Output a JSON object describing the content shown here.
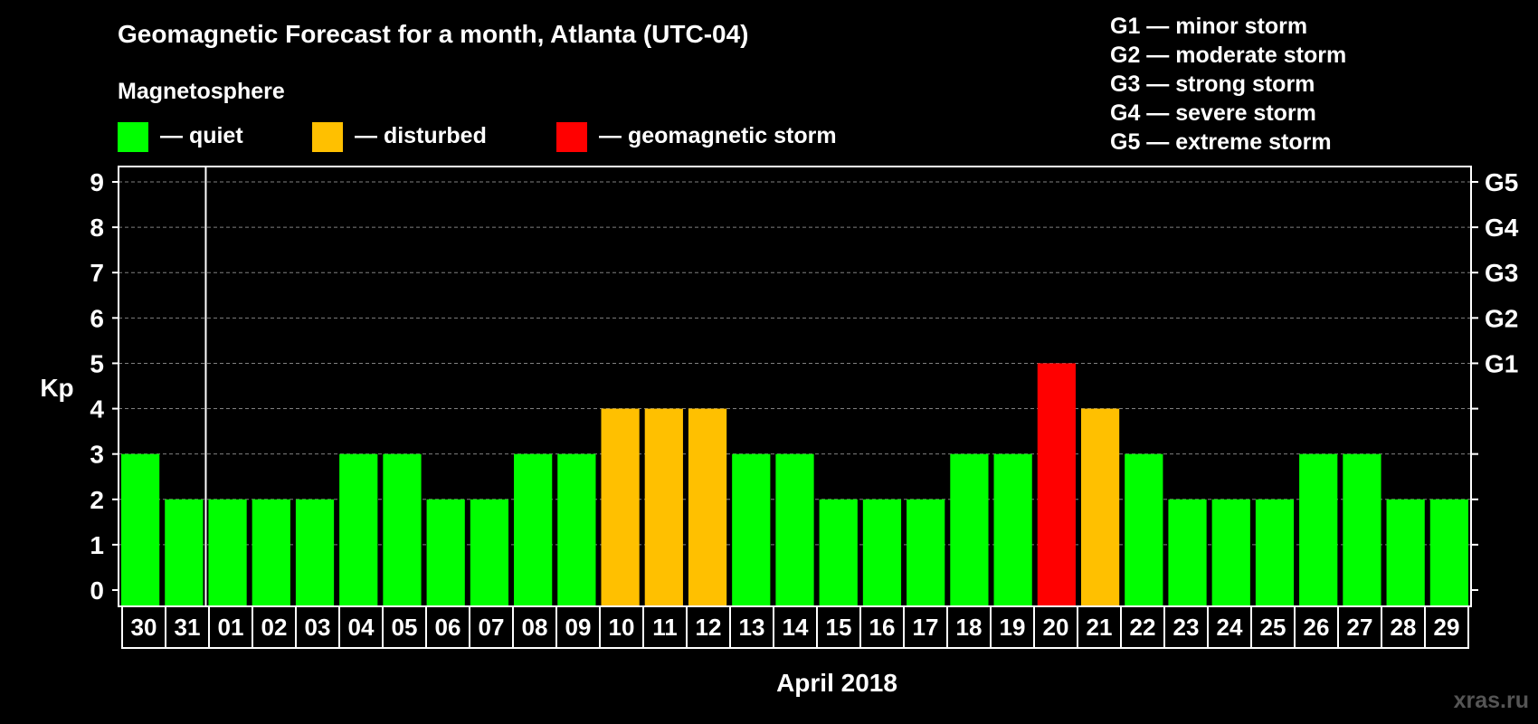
{
  "chart_data": {
    "type": "bar",
    "title": "Geomagnetic Forecast for a month, Atlanta (UTC-04)",
    "xlabel": "April 2018",
    "ylabel": "Kp",
    "ylim": [
      0,
      9
    ],
    "yticks": [
      "0",
      "1",
      "2",
      "3",
      "4",
      "5",
      "6",
      "7",
      "8",
      "9"
    ],
    "right_axis_labels": [
      {
        "kp": 5,
        "label": "G1"
      },
      {
        "kp": 6,
        "label": "G2"
      },
      {
        "kp": 7,
        "label": "G3"
      },
      {
        "kp": 8,
        "label": "G4"
      },
      {
        "kp": 9,
        "label": "G5"
      }
    ],
    "grid": "horizontal-dashed",
    "categories": [
      "30",
      "31",
      "01",
      "02",
      "03",
      "04",
      "05",
      "06",
      "07",
      "08",
      "09",
      "10",
      "11",
      "12",
      "13",
      "14",
      "15",
      "16",
      "17",
      "18",
      "19",
      "20",
      "21",
      "22",
      "23",
      "24",
      "25",
      "26",
      "27",
      "28",
      "29"
    ],
    "values": [
      3,
      2,
      2,
      2,
      2,
      3,
      3,
      2,
      2,
      3,
      3,
      4,
      4,
      4,
      3,
      3,
      2,
      2,
      2,
      3,
      3,
      5,
      4,
      3,
      2,
      2,
      2,
      3,
      3,
      2,
      2
    ],
    "month_divider_after": "31",
    "legend": {
      "heading": "Magnetosphere",
      "placement": "top-left",
      "items": [
        {
          "color": "#00ff00",
          "label": "— quiet"
        },
        {
          "color": "#ffc000",
          "label": "— disturbed"
        },
        {
          "color": "#ff0000",
          "label": "— geomagnetic storm"
        }
      ]
    },
    "storm_scale": {
      "placement": "top-right",
      "items": [
        "G1 — minor storm",
        "G2 — moderate storm",
        "G3 — strong storm",
        "G4 — severe storm",
        "G5 — extreme storm"
      ]
    },
    "watermark": "xras.ru"
  },
  "colors": {
    "background": "#000000",
    "foreground": "#ffffff",
    "grid": "#808080",
    "quiet": "#00ff00",
    "disturbed": "#ffc000",
    "storm": "#ff0000"
  }
}
